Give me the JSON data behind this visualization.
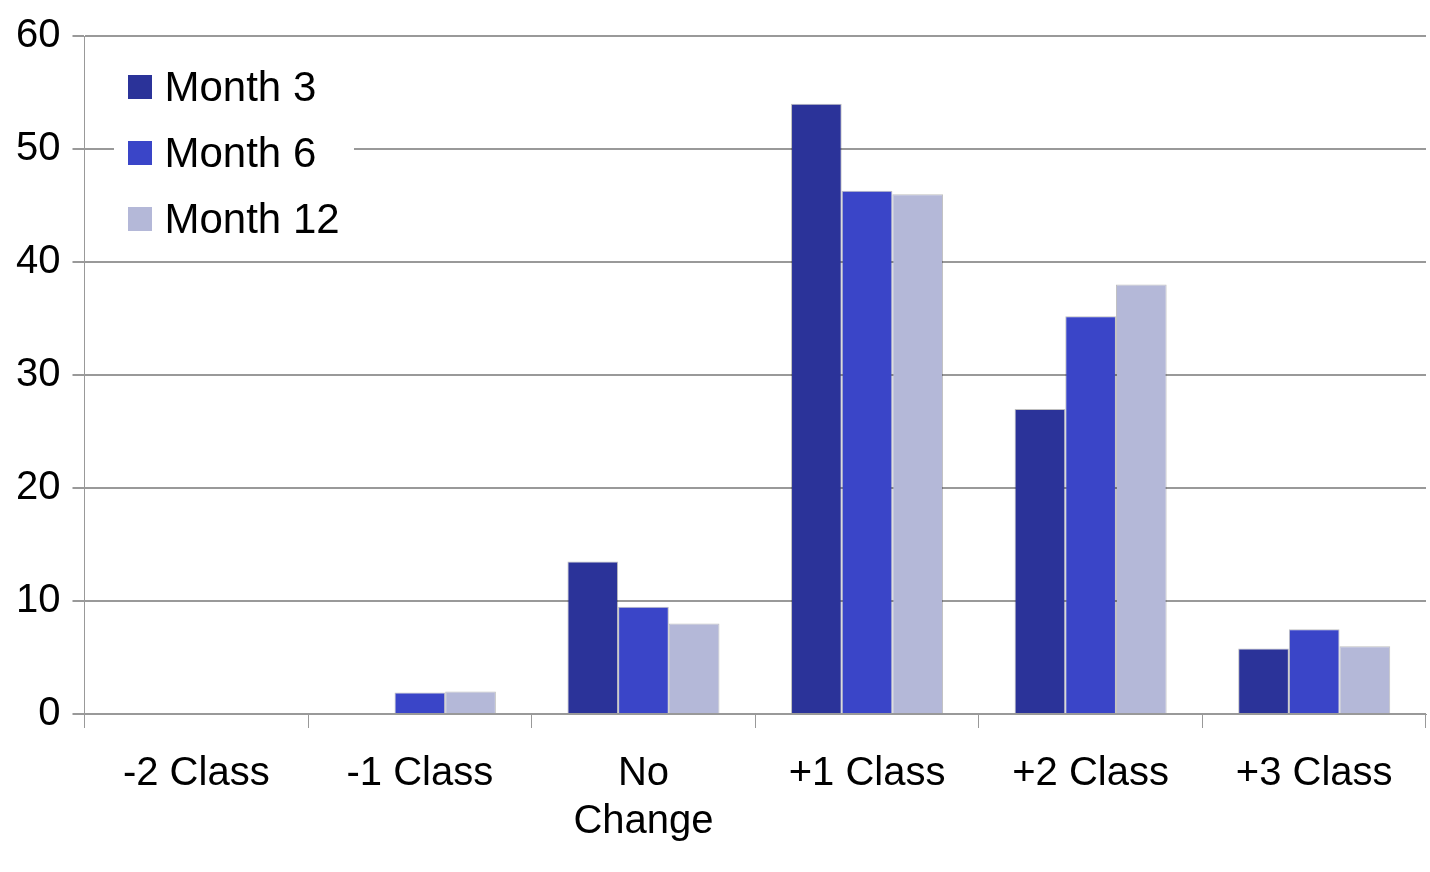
{
  "chart_data": {
    "type": "bar",
    "categories": [
      "-2 Class",
      "-1 Class",
      "No Change",
      "+1 Class",
      "+2 Class",
      "+3 Class"
    ],
    "series": [
      {
        "name": "Month 3",
        "color": "#2b3399",
        "values": [
          0,
          0,
          13.5,
          54,
          27,
          5.8
        ]
      },
      {
        "name": "Month 6",
        "color": "#3a45c8",
        "values": [
          0,
          1.9,
          9.5,
          46.3,
          35.2,
          7.5
        ]
      },
      {
        "name": "Month 12",
        "color": "#b4b8d8",
        "values": [
          0,
          2,
          8,
          46,
          38,
          6
        ]
      }
    ],
    "ylim": [
      0,
      60
    ],
    "yticks": [
      0,
      10,
      20,
      30,
      40,
      50,
      60
    ],
    "grid": "y",
    "legend": "top left"
  }
}
